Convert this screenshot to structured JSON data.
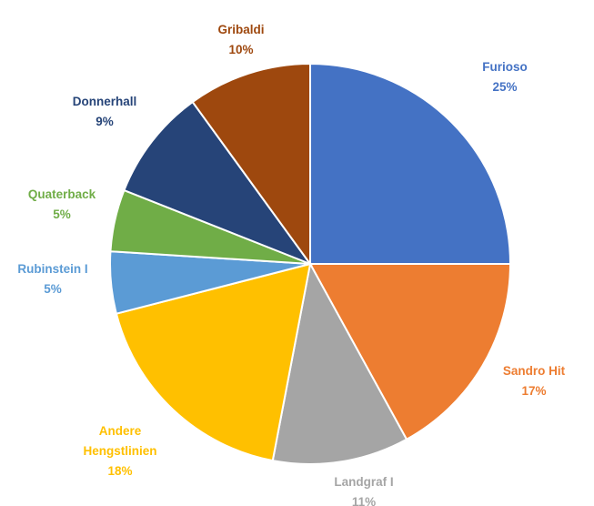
{
  "chart_data": {
    "type": "pie",
    "title": "",
    "start_category": "Furioso",
    "direction": "clockwise",
    "slices": [
      {
        "label": "Furioso",
        "label_lines": [
          "Furioso"
        ],
        "percent_label": "25%",
        "value": 25,
        "color": "#4472C4"
      },
      {
        "label": "Sandro Hit",
        "label_lines": [
          "Sandro Hit"
        ],
        "percent_label": "17%",
        "value": 17,
        "color": "#ED7D31"
      },
      {
        "label": "Landgraf I",
        "label_lines": [
          "Landgraf I"
        ],
        "percent_label": "11%",
        "value": 11,
        "color": "#A5A5A5"
      },
      {
        "label": "Andere Hengstlinien",
        "label_lines": [
          "Andere",
          "Hengstlinien"
        ],
        "percent_label": "18%",
        "value": 18,
        "color": "#FFC000"
      },
      {
        "label": "Rubinstein I",
        "label_lines": [
          "Rubinstein I"
        ],
        "percent_label": "5%",
        "value": 5,
        "color": "#5B9BD5"
      },
      {
        "label": "Quaterback",
        "label_lines": [
          "Quaterback"
        ],
        "percent_label": "5%",
        "value": 5,
        "color": "#70AD47"
      },
      {
        "label": "Donnerhall",
        "label_lines": [
          "Donnerhall"
        ],
        "percent_label": "9%",
        "value": 9,
        "color": "#264478"
      },
      {
        "label": "Gribaldi",
        "label_lines": [
          "Gribaldi"
        ],
        "percent_label": "10%",
        "value": 10,
        "color": "#9E480E"
      }
    ],
    "legend": "none",
    "data_labels": "outside"
  }
}
